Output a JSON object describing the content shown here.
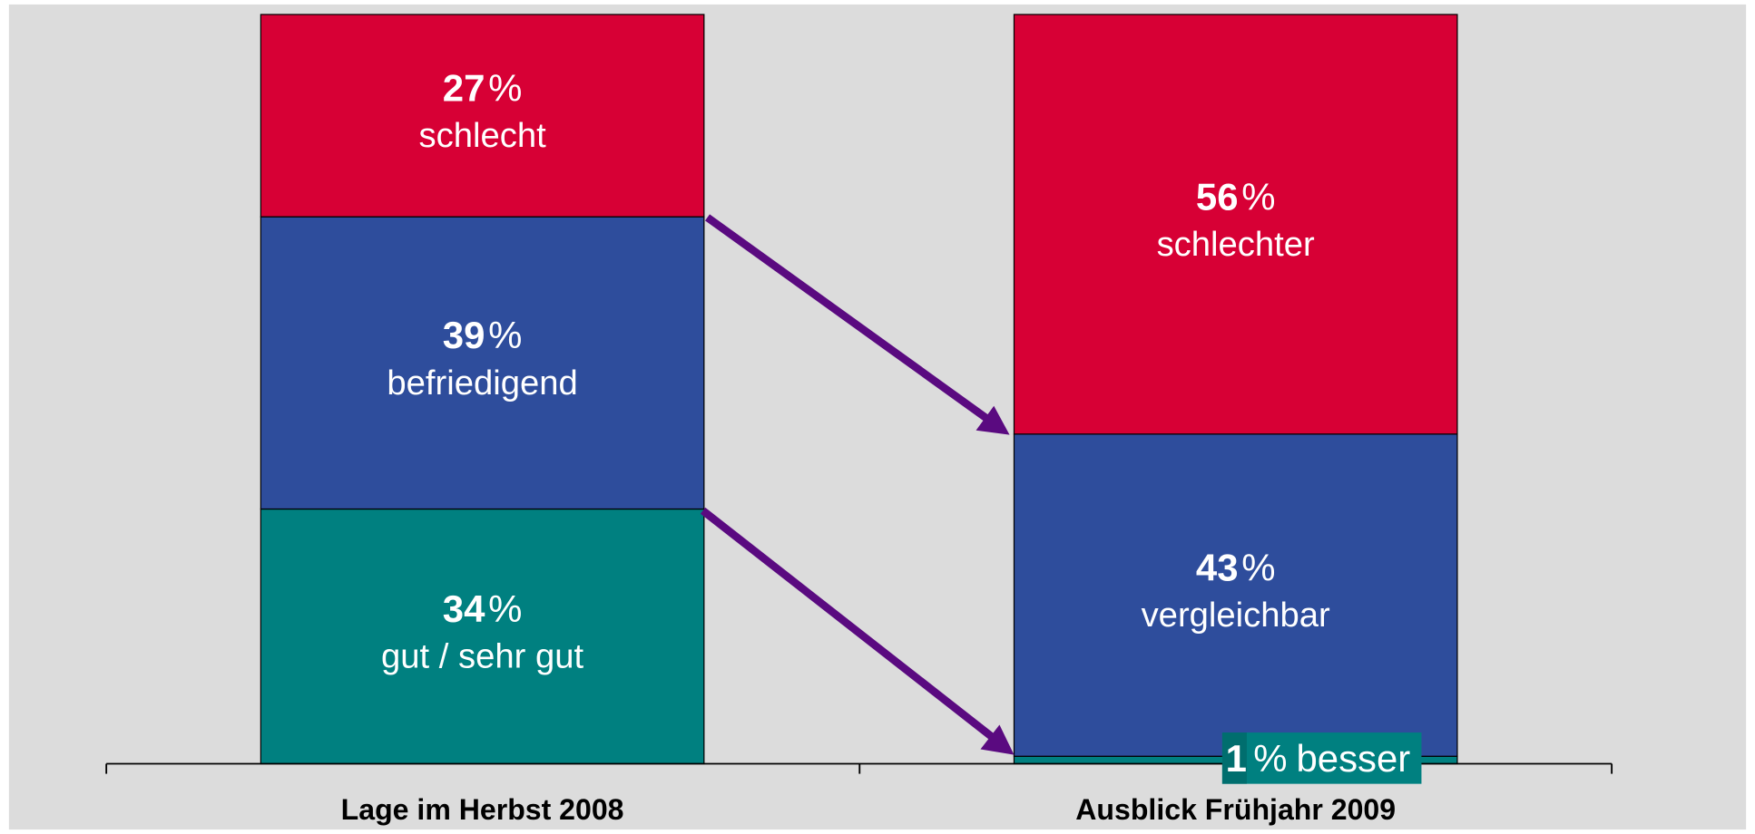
{
  "chart_data": {
    "type": "stacked_bar",
    "unit": "%",
    "ylim": [
      0,
      100
    ],
    "categories": [
      "Lage im Herbst 2008",
      "Ausblick Frühjahr 2009"
    ],
    "bars": [
      {
        "segments": [
          {
            "label": "gut / sehr gut",
            "value": 34,
            "color": "#008080"
          },
          {
            "label": "befriedigend",
            "value": 39,
            "color": "#2e4d9c"
          },
          {
            "label": "schlecht",
            "value": 27,
            "color": "#d70035"
          }
        ]
      },
      {
        "segments": [
          {
            "label": "besser",
            "value": 1,
            "color": "#008080"
          },
          {
            "label": "vergleichbar",
            "value": 43,
            "color": "#2e4d9c"
          },
          {
            "label": "schlechter",
            "value": 56,
            "color": "#d70035"
          }
        ]
      }
    ]
  }
}
